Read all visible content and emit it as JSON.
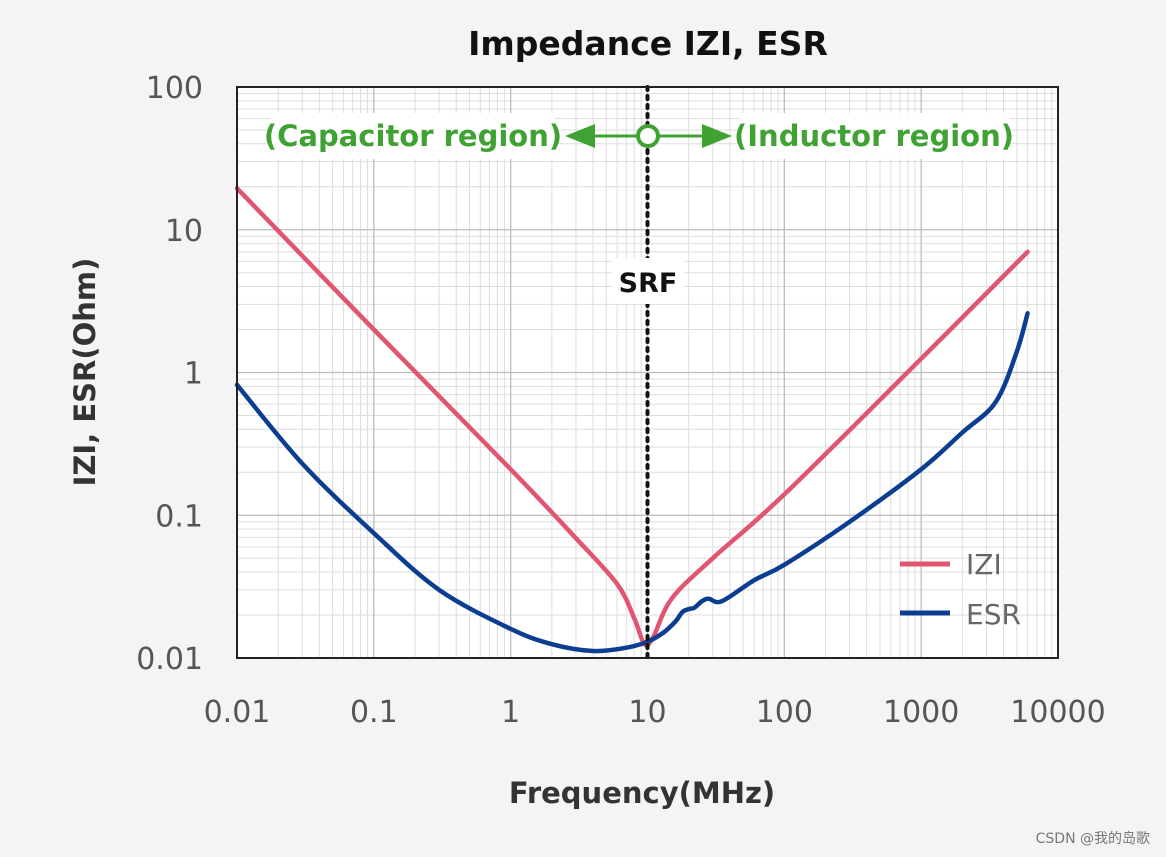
{
  "chart_data": {
    "type": "line",
    "title": "Impedance IZI, ESR",
    "xlabel": "Frequency(MHz)",
    "ylabel": "IZI, ESR(Ohm)",
    "xscale": "log",
    "yscale": "log",
    "xlim": [
      0.01,
      10000
    ],
    "ylim": [
      0.01,
      100
    ],
    "x_tick_labels": [
      "0.01",
      "0.1",
      "1",
      "10",
      "100",
      "1000",
      "10000"
    ],
    "y_tick_labels": [
      "100",
      "10",
      "1",
      "0.1",
      "0.01"
    ],
    "grid": true,
    "legend_position": "bottom-right",
    "series": [
      {
        "name": "IZI",
        "color": "#e05570",
        "x": [
          0.01,
          0.1,
          1,
          3,
          6,
          8,
          9.5,
          11,
          15,
          30,
          100,
          1000,
          6000
        ],
        "y": [
          19.5,
          2.0,
          0.21,
          0.069,
          0.033,
          0.019,
          0.0125,
          0.014,
          0.026,
          0.05,
          0.14,
          1.25,
          7.0
        ]
      },
      {
        "name": "ESR",
        "color": "#0b3d91",
        "x": [
          0.01,
          0.03,
          0.1,
          0.3,
          1,
          2,
          4,
          7,
          10,
          13,
          16,
          18,
          20,
          22,
          25,
          28,
          35,
          60,
          100,
          300,
          1000,
          2000,
          3500,
          5000,
          6000
        ],
        "y": [
          0.82,
          0.23,
          0.075,
          0.03,
          0.016,
          0.0125,
          0.0112,
          0.0118,
          0.013,
          0.015,
          0.018,
          0.021,
          0.022,
          0.0225,
          0.025,
          0.026,
          0.025,
          0.035,
          0.045,
          0.09,
          0.21,
          0.38,
          0.62,
          1.4,
          2.6
        ]
      }
    ],
    "annotations": {
      "srf_label": "SRF",
      "srf_x": 10,
      "left_region": "(Capacitor region)",
      "right_region": "(Inductor region)"
    }
  },
  "watermark": "CSDN @我的岛歌"
}
